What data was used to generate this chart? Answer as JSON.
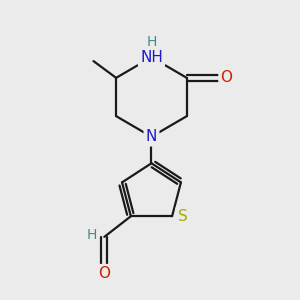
{
  "background_color": "#ebebeb",
  "atom_colors": {
    "C": "#000000",
    "N": "#1a1acc",
    "O": "#cc2200",
    "S": "#aaaa00",
    "H": "#4a8888"
  },
  "bond_color": "#1a1a1a",
  "bond_width": 1.6,
  "figsize": [
    3.0,
    3.0
  ],
  "dpi": 100,
  "font_size": 11,
  "font_size_h": 10
}
